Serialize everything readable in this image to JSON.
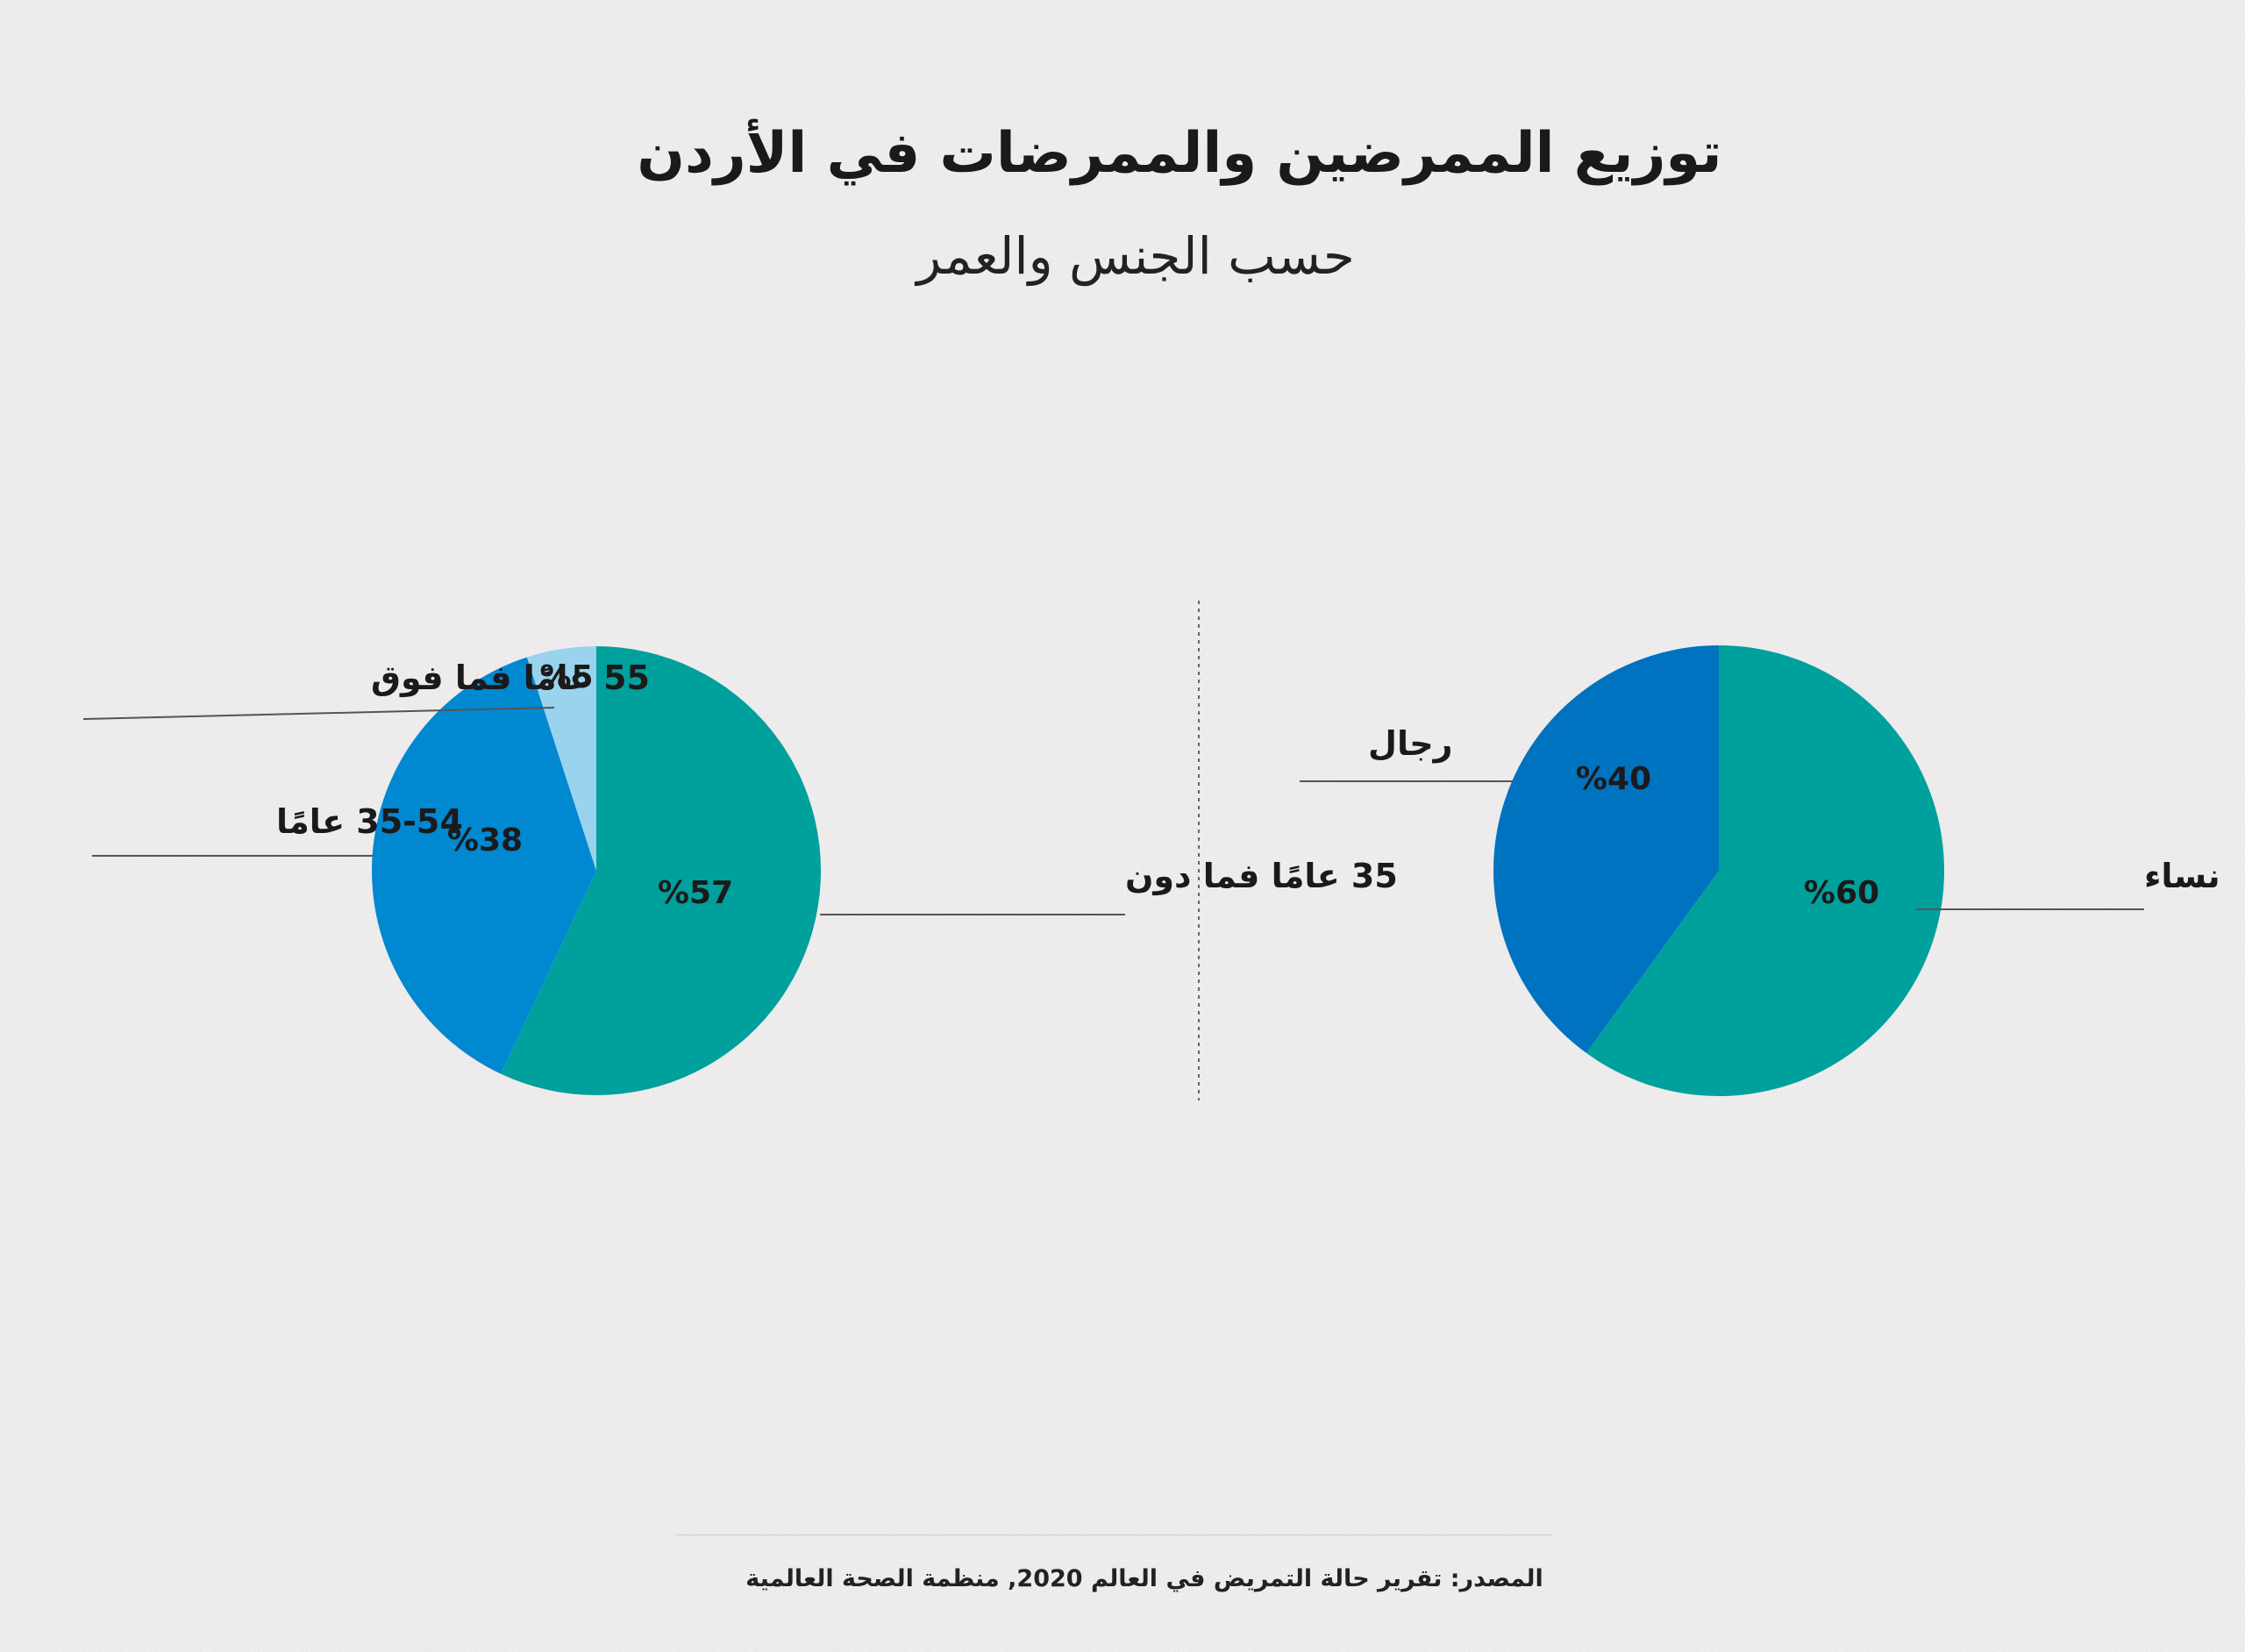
{
  "header": {
    "title": "توزيع الممرضين والممرضات في الأردن",
    "subtitle": "حسب الجنس والعمر"
  },
  "footer": {
    "source": "المصدر: تقرير حالة التمريض في العالم 2020, منظمة الصحة العالمية"
  },
  "colors": {
    "background": "#efeded",
    "teal": "#00a09d",
    "blue": "#0088d1",
    "dark_blue": "#0073c0",
    "light_blue": "#9ad3ee",
    "leader_line": "#555555"
  },
  "chart_data": [
    {
      "type": "pie",
      "slices": [
        {
          "category": "35 عامًا فما دون",
          "value": 57,
          "label": "%57",
          "color": "#00a09d"
        },
        {
          "category": "35-54 عامًا",
          "value": 38,
          "label": "%38",
          "color": "#0088d1"
        },
        {
          "category": "55 عامًا فما فوق",
          "value": 5,
          "label": "%5",
          "color": "#9ad3ee"
        }
      ]
    },
    {
      "type": "pie",
      "slices": [
        {
          "category": "نساء",
          "value": 60,
          "label": "%60",
          "color": "#00a09d"
        },
        {
          "category": "رجال",
          "value": 40,
          "label": "%40",
          "color": "#0073c0"
        }
      ]
    }
  ]
}
